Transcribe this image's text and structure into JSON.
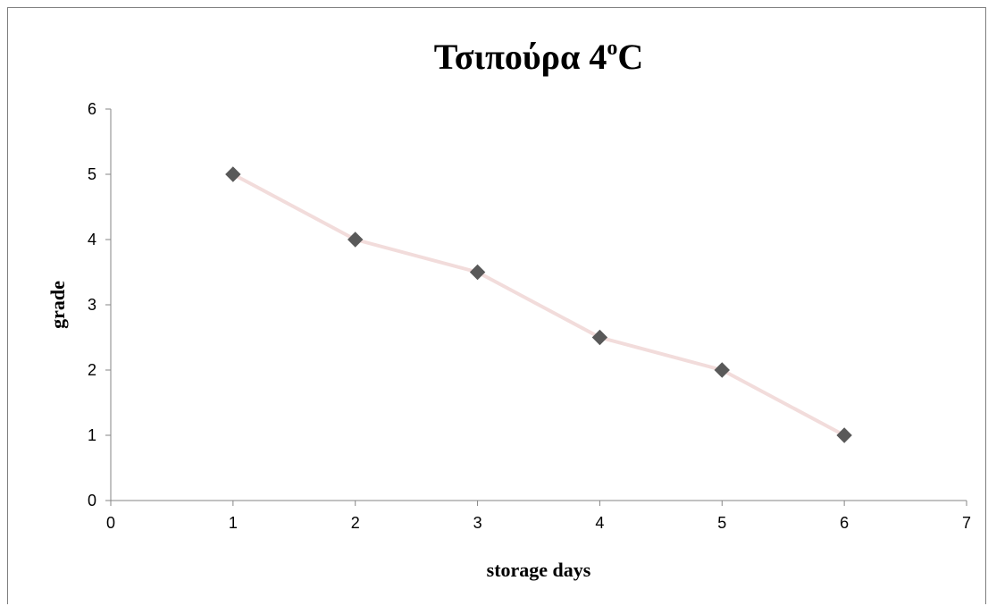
{
  "chart_data": {
    "type": "line",
    "title": {
      "main": "Τσιπούρα 4",
      "superscript": "o",
      "suffix": "C"
    },
    "xlabel": "storage days",
    "ylabel": "grade",
    "xlim": [
      0,
      7
    ],
    "ylim": [
      0,
      6
    ],
    "x_ticks": [
      0,
      1,
      2,
      3,
      4,
      5,
      6,
      7
    ],
    "y_ticks": [
      0,
      1,
      2,
      3,
      4,
      5,
      6
    ],
    "grid": false,
    "legend": "none",
    "series": [
      {
        "x": [
          1,
          2,
          3,
          4,
          5,
          6
        ],
        "y": [
          5,
          4,
          3.5,
          2.5,
          2,
          1
        ],
        "line_color": "#f2dcdb",
        "marker": "diamond",
        "marker_color": "#595959"
      }
    ]
  },
  "colors": {
    "axis": "#868686",
    "frame": "#7f7f7f"
  }
}
